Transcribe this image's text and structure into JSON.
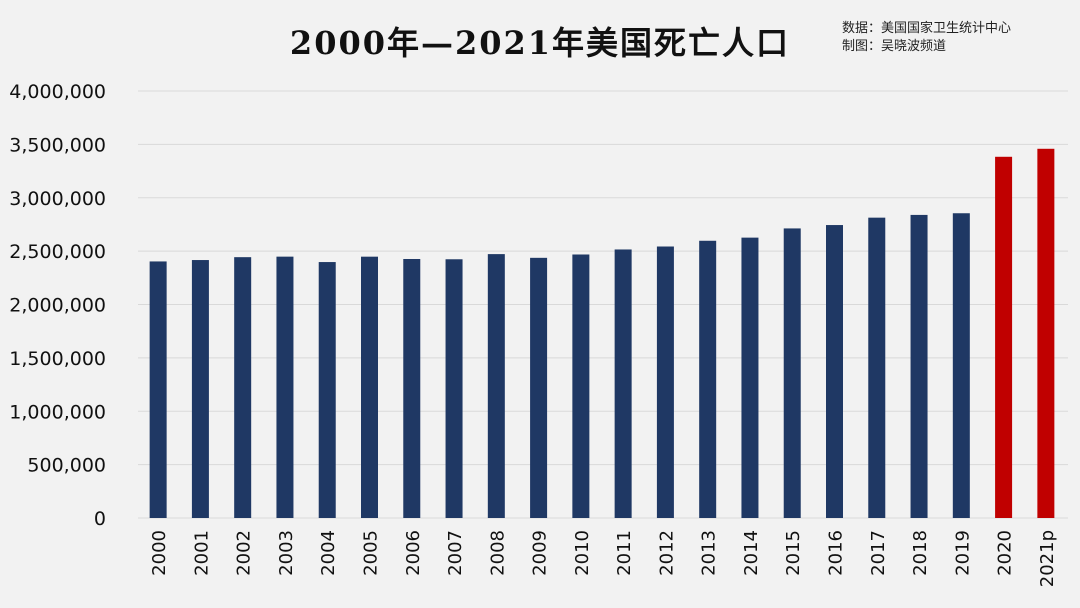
{
  "title": "2000年—2021年美国死亡人口",
  "source": {
    "line1": "数据：美国国家卫生统计中心",
    "line2": "制图：吴晓波频道"
  },
  "colors": {
    "bar": "#1f3864",
    "highlight": "#c00000",
    "grid": "#d9d9d9"
  },
  "chart_data": {
    "type": "bar",
    "title": "2000年—2021年美国死亡人口",
    "categories": [
      "2000",
      "2001",
      "2002",
      "2003",
      "2004",
      "2005",
      "2006",
      "2007",
      "2008",
      "2009",
      "2010",
      "2011",
      "2012",
      "2013",
      "2014",
      "2015",
      "2016",
      "2017",
      "2018",
      "2019",
      "2020",
      "2021p"
    ],
    "values": [
      2403351,
      2416425,
      2443387,
      2448288,
      2397615,
      2448017,
      2426264,
      2423712,
      2471984,
      2437163,
      2468435,
      2515458,
      2543279,
      2596993,
      2626418,
      2712630,
      2744248,
      2813503,
      2839205,
      2854838,
      3383729,
      3458697
    ],
    "highlight_categories": [
      "2020",
      "2021p"
    ],
    "ylim": [
      0,
      4000000
    ],
    "yticks": [
      0,
      500000,
      1000000,
      1500000,
      2000000,
      2500000,
      3000000,
      3500000,
      4000000
    ],
    "ytick_labels": [
      "0",
      "500,000",
      "1,000,000",
      "1,500,000",
      "2,000,000",
      "2,500,000",
      "3,000,000",
      "3,500,000",
      "4,000,000"
    ],
    "grid": true,
    "legend": "none",
    "xlabel": "",
    "ylabel": ""
  }
}
